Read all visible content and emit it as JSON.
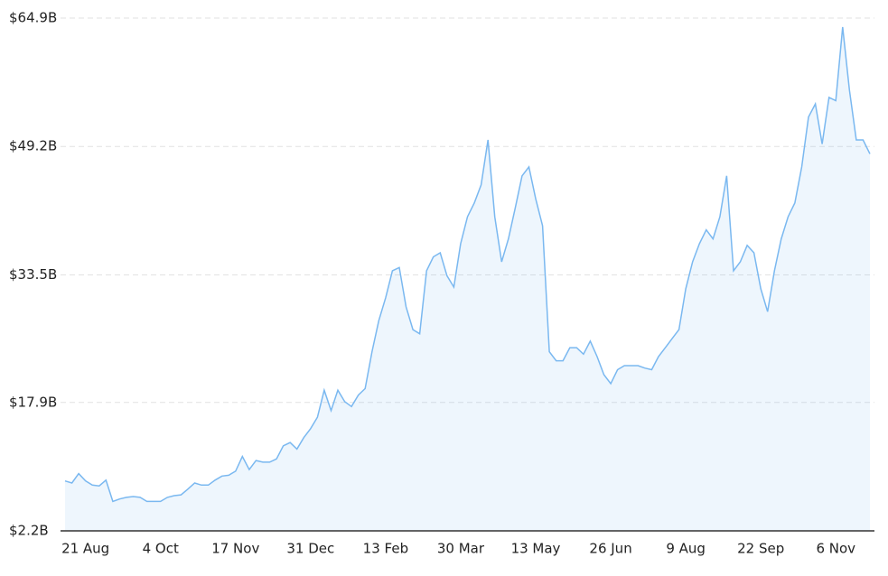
{
  "chart_data": {
    "type": "area",
    "categories": [
      null,
      null,
      null,
      "21 Aug",
      null,
      null,
      null,
      null,
      null,
      null,
      null,
      null,
      null,
      null,
      "4 Oct",
      null,
      null,
      null,
      null,
      null,
      null,
      null,
      null,
      null,
      null,
      "17 Nov",
      null,
      null,
      null,
      null,
      null,
      null,
      null,
      null,
      null,
      null,
      "31 Dec",
      null,
      null,
      null,
      null,
      null,
      null,
      null,
      null,
      null,
      null,
      "13 Feb",
      null,
      null,
      null,
      null,
      null,
      null,
      null,
      null,
      null,
      null,
      "30 Mar",
      null,
      null,
      null,
      null,
      null,
      null,
      null,
      null,
      null,
      null,
      "13 May",
      null,
      null,
      null,
      null,
      null,
      null,
      null,
      null,
      null,
      null,
      "26 Jun",
      null,
      null,
      null,
      null,
      null,
      null,
      null,
      null,
      null,
      null,
      "9 Aug",
      null,
      null,
      null,
      null,
      null,
      null,
      null,
      null,
      null,
      null,
      "22 Sep",
      null,
      null,
      null,
      null,
      null,
      null,
      null,
      null,
      null,
      null,
      "6 Nov",
      null,
      null,
      null,
      null,
      null
    ],
    "values": [
      8.3,
      8.05,
      9.2,
      8.3,
      7.8,
      7.7,
      8.4,
      5.8,
      6.1,
      6.3,
      6.4,
      6.3,
      5.8,
      5.8,
      5.8,
      6.3,
      6.5,
      6.6,
      7.3,
      8.05,
      7.8,
      7.8,
      8.4,
      8.9,
      9.0,
      9.5,
      11.3,
      9.7,
      10.8,
      10.6,
      10.6,
      11.0,
      12.6,
      13.0,
      12.2,
      13.6,
      14.7,
      16.1,
      19.4,
      16.9,
      19.4,
      18.0,
      17.4,
      18.8,
      19.6,
      24.1,
      27.9,
      30.7,
      34.0,
      34.4,
      29.6,
      26.8,
      26.3,
      34.0,
      35.7,
      36.2,
      33.4,
      32.0,
      37.3,
      40.6,
      42.3,
      44.5,
      50.0,
      40.6,
      35.1,
      37.9,
      41.7,
      45.6,
      46.7,
      42.8,
      39.5,
      24.1,
      23.0,
      23.0,
      24.6,
      24.6,
      23.8,
      25.4,
      23.5,
      21.3,
      20.2,
      21.9,
      22.4,
      22.4,
      22.4,
      22.1,
      21.9,
      23.5,
      24.6,
      25.7,
      26.8,
      31.8,
      35.1,
      37.3,
      39.0,
      37.9,
      40.6,
      45.6,
      34.0,
      35.1,
      37.1,
      36.2,
      31.8,
      29.0,
      34.0,
      37.9,
      40.6,
      42.3,
      46.7,
      52.8,
      54.4,
      49.5,
      55.2,
      54.8,
      63.8,
      56.1,
      50.0,
      50.0,
      48.3
    ],
    "color": "#7ab8f0",
    "ylim": [
      2.2,
      64.9
    ],
    "yticks": [
      {
        "value": 2.2,
        "label": "$2.2B"
      },
      {
        "value": 17.9,
        "label": "$17.9B"
      },
      {
        "value": 33.5,
        "label": "$33.5B"
      },
      {
        "value": 49.2,
        "label": "$49.2B"
      },
      {
        "value": 64.9,
        "label": "$64.9B"
      }
    ],
    "grid": true
  }
}
